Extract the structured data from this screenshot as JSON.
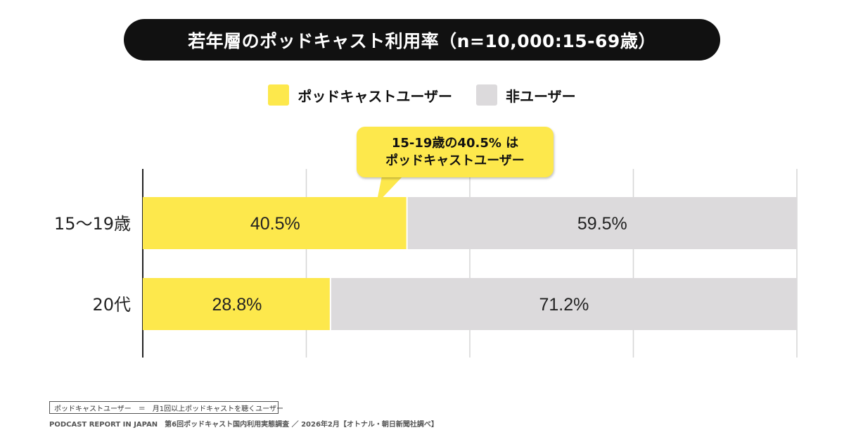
{
  "title": "若年層のポッドキャスト利用率（n=10,000:15-69歳）",
  "legend": [
    {
      "label": "ポッドキャストユーザー",
      "color": "#fde84c"
    },
    {
      "label": "非ユーザー",
      "color": "#dcdadc"
    }
  ],
  "callout": {
    "line1": "15-19歳の40.5% は",
    "line2": "ポッドキャストユーザー"
  },
  "footnote": "ポッドキャストユーザー　＝　月1回以上ポッドキャストを聴くユーザー",
  "source": "PODCAST REPORT IN JAPAN　第6回ポッドキャスト国内利用実態調査 ／ 2026年2月【オトナル・朝日新聞社調べ】",
  "chart_data": {
    "type": "bar",
    "orientation": "horizontal",
    "stacked": true,
    "categories": [
      "15〜19歳",
      "20代"
    ],
    "series": [
      {
        "name": "ポッドキャストユーザー",
        "values": [
          40.5,
          28.8
        ],
        "labels": [
          "40.5%",
          "28.8%"
        ],
        "color": "#fde84c"
      },
      {
        "name": "非ユーザー",
        "values": [
          59.5,
          71.2
        ],
        "labels": [
          "59.5%",
          "71.2%"
        ],
        "color": "#dcdadc"
      }
    ],
    "xlim": [
      0,
      100
    ],
    "grid": true,
    "legend_position": "top-center"
  }
}
